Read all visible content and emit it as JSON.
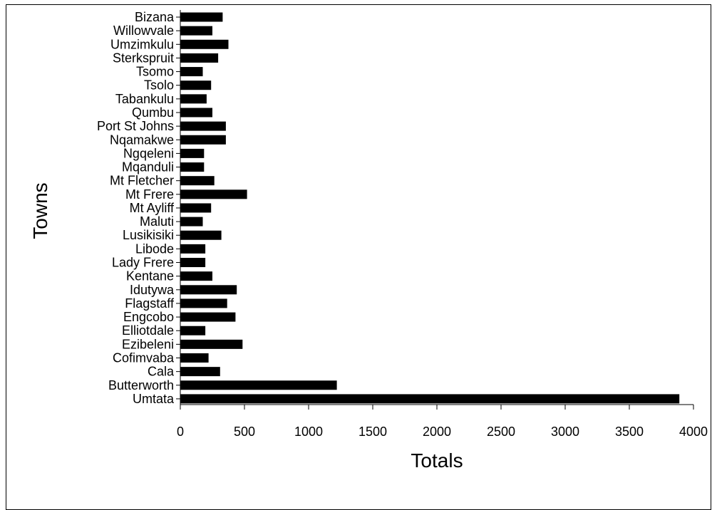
{
  "chart_data": {
    "type": "bar",
    "orientation": "horizontal",
    "title": "",
    "xlabel": "Totals",
    "ylabel": "Towns",
    "xlim": [
      0,
      4000
    ],
    "xticks": [
      "0",
      "500",
      "1000",
      "1500",
      "2000",
      "2500",
      "3000",
      "3500",
      "4000"
    ],
    "grid": false,
    "bar_color": "#000000",
    "categories": [
      "Bizana",
      "Willowvale",
      "Umzimkulu",
      "Sterkspruit",
      "Tsomo",
      "Tsolo",
      "Tabankulu",
      "Qumbu",
      "Port St Johns",
      "Nqamakwe",
      "Ngqeleni",
      "Mqanduli",
      "Mt Fletcher",
      "Mt Frere",
      "Mt Ayliff",
      "Maluti",
      "Lusikisiki",
      "Libode",
      "Lady Frere",
      "Kentane",
      "Idutywa",
      "Flagstaff",
      "Engcobo",
      "Elliotdale",
      "Ezibeleni",
      "Cofimvaba",
      "Cala",
      "Butterworth",
      "Umtata"
    ],
    "values": [
      330,
      250,
      375,
      295,
      175,
      240,
      205,
      250,
      355,
      355,
      185,
      185,
      265,
      520,
      240,
      175,
      320,
      195,
      195,
      250,
      440,
      365,
      430,
      195,
      485,
      220,
      310,
      1220,
      3890
    ]
  }
}
